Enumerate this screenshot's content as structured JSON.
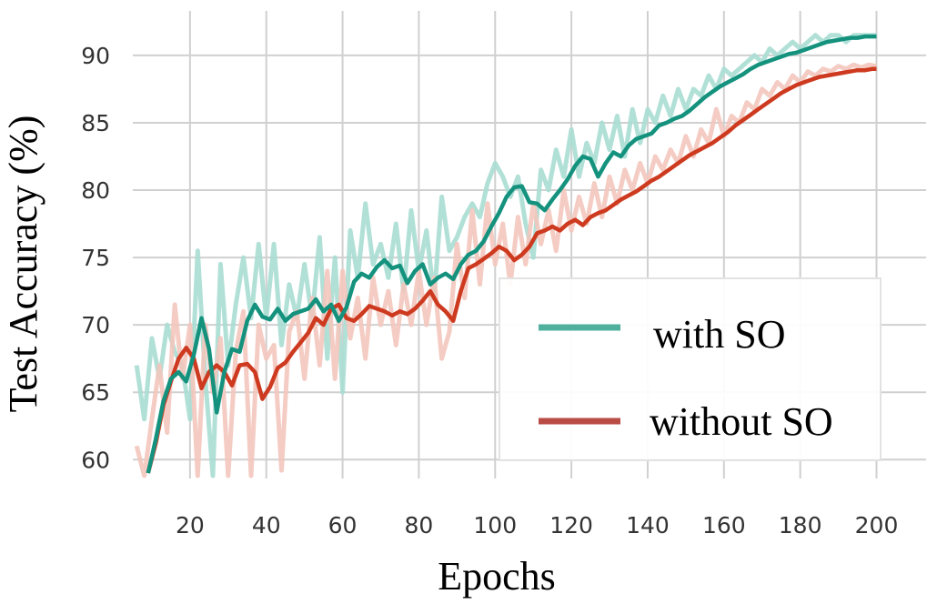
{
  "chart_data": {
    "type": "line",
    "title": "",
    "xlabel": "Epochs",
    "ylabel": "Test Accuracy (%)",
    "xlim": [
      5,
      213
    ],
    "ylim": [
      58.6,
      93.3
    ],
    "xticks": [
      20,
      40,
      60,
      80,
      100,
      120,
      140,
      160,
      180,
      200
    ],
    "yticks": [
      60,
      65,
      70,
      75,
      80,
      85,
      90
    ],
    "grid": true,
    "legend_position": "bottom-right",
    "series": [
      {
        "name": "with SO",
        "color": "#14927e",
        "raw_color": "#a9ddd3",
        "smoothed": {
          "x": [
            9,
            11,
            13,
            15,
            17,
            19,
            21,
            23,
            25,
            27,
            29,
            31,
            33,
            35,
            37,
            39,
            41,
            43,
            45,
            47,
            49,
            51,
            53,
            55,
            57,
            59,
            61,
            63,
            65,
            67,
            69,
            71,
            73,
            75,
            77,
            79,
            81,
            83,
            85,
            87,
            89,
            91,
            93,
            95,
            97,
            99,
            101,
            103,
            105,
            107,
            109,
            111,
            113,
            115,
            117,
            119,
            121,
            123,
            125,
            127,
            129,
            131,
            133,
            135,
            137,
            139,
            141,
            143,
            145,
            147,
            149,
            151,
            153,
            155,
            157,
            159,
            161,
            163,
            165,
            167,
            169,
            171,
            173,
            175,
            177,
            179,
            181,
            183,
            185,
            187,
            189,
            191,
            193,
            195,
            197,
            199,
            200
          ],
          "y": [
            59.0,
            61.5,
            64.3,
            66.0,
            66.5,
            65.8,
            67.8,
            70.5,
            68.2,
            63.5,
            66.5,
            68.2,
            68.0,
            70.3,
            71.5,
            70.6,
            70.4,
            71.2,
            70.3,
            70.8,
            71.0,
            71.2,
            71.9,
            71.0,
            71.5,
            70.3,
            71.3,
            73.2,
            73.8,
            73.5,
            74.3,
            74.8,
            74.2,
            74.4,
            73.1,
            74.0,
            74.5,
            73.0,
            73.5,
            73.8,
            73.4,
            74.5,
            75.2,
            75.5,
            76.2,
            77.3,
            78.3,
            79.5,
            80.2,
            80.3,
            79.1,
            79.0,
            78.5,
            79.3,
            80.0,
            80.8,
            81.8,
            82.5,
            82.3,
            81.0,
            82.0,
            82.8,
            82.5,
            83.3,
            83.8,
            84.0,
            84.2,
            84.8,
            85.0,
            85.3,
            85.5,
            85.9,
            86.4,
            86.9,
            87.3,
            87.7,
            88.0,
            88.3,
            88.6,
            89.0,
            89.3,
            89.5,
            89.7,
            89.9,
            90.1,
            90.2,
            90.4,
            90.6,
            90.8,
            91.0,
            91.1,
            91.2,
            91.3,
            91.3,
            91.4,
            91.4,
            91.4
          ]
        },
        "raw": {
          "x": [
            6,
            8,
            10,
            12,
            14,
            16,
            18,
            20,
            22,
            24,
            26,
            28,
            30,
            32,
            34,
            36,
            38,
            40,
            42,
            44,
            46,
            48,
            50,
            52,
            54,
            56,
            58,
            60,
            62,
            64,
            66,
            68,
            70,
            72,
            74,
            76,
            78,
            80,
            82,
            84,
            86,
            88,
            90,
            92,
            94,
            96,
            98,
            100,
            102,
            104,
            106,
            108,
            110,
            112,
            114,
            116,
            118,
            120,
            122,
            124,
            126,
            128,
            130,
            132,
            134,
            136,
            138,
            140,
            142,
            144,
            146,
            148,
            150,
            152,
            154,
            156,
            158,
            160,
            162,
            164,
            166,
            168,
            170,
            172,
            174,
            176,
            178,
            180,
            182,
            184,
            186,
            188,
            190,
            192,
            194,
            196,
            198,
            200
          ],
          "y": [
            67.0,
            63.0,
            69.0,
            66.0,
            70.0,
            68.0,
            67.0,
            63.0,
            75.5,
            66.0,
            58.8,
            74.5,
            67.0,
            71.5,
            75.0,
            70.5,
            76.0,
            70.5,
            76.0,
            68.5,
            73.0,
            70.5,
            74.5,
            70.5,
            76.5,
            67.5,
            75.0,
            65.0,
            77.0,
            73.5,
            79.0,
            74.5,
            76.0,
            73.5,
            77.5,
            72.5,
            78.5,
            74.0,
            77.0,
            72.0,
            79.5,
            75.5,
            76.5,
            78.0,
            79.0,
            78.0,
            80.5,
            82.0,
            81.0,
            79.5,
            81.0,
            77.5,
            75.0,
            81.5,
            80.0,
            83.0,
            81.0,
            84.5,
            81.0,
            83.5,
            82.0,
            85.0,
            83.0,
            85.5,
            82.5,
            86.0,
            83.5,
            86.0,
            85.0,
            87.0,
            85.5,
            87.5,
            86.0,
            87.5,
            87.0,
            88.5,
            87.5,
            89.0,
            88.5,
            89.0,
            89.5,
            90.0,
            89.5,
            90.5,
            90.0,
            90.5,
            91.0,
            90.5,
            91.0,
            91.5,
            91.0,
            91.5,
            91.5,
            91.0,
            91.5,
            91.5,
            91.5,
            91.5
          ]
        }
      },
      {
        "name": "without SO",
        "color": "#cd3a1f",
        "raw_color": "#f3c6bd",
        "smoothed": {
          "x": [
            9,
            11,
            13,
            15,
            17,
            19,
            21,
            23,
            25,
            27,
            29,
            31,
            33,
            35,
            37,
            39,
            41,
            43,
            45,
            47,
            49,
            51,
            53,
            55,
            57,
            59,
            61,
            63,
            65,
            67,
            69,
            71,
            73,
            75,
            77,
            79,
            81,
            83,
            85,
            87,
            89,
            91,
            93,
            95,
            97,
            99,
            101,
            103,
            105,
            107,
            109,
            111,
            113,
            115,
            117,
            119,
            121,
            123,
            125,
            127,
            129,
            131,
            133,
            135,
            137,
            139,
            141,
            143,
            145,
            147,
            149,
            151,
            153,
            155,
            157,
            159,
            161,
            163,
            165,
            167,
            169,
            171,
            173,
            175,
            177,
            179,
            181,
            183,
            185,
            187,
            189,
            191,
            193,
            195,
            197,
            199,
            200
          ],
          "y": [
            59.0,
            61.2,
            64.0,
            65.8,
            67.5,
            68.3,
            67.5,
            65.3,
            66.5,
            67.0,
            66.5,
            65.5,
            67.0,
            67.1,
            66.5,
            64.5,
            65.4,
            66.8,
            67.2,
            68.0,
            68.7,
            69.4,
            70.5,
            70.0,
            71.2,
            71.5,
            70.5,
            70.3,
            70.8,
            71.4,
            71.2,
            71.0,
            70.7,
            71.0,
            70.8,
            71.2,
            71.8,
            72.5,
            71.5,
            71.0,
            70.3,
            72.5,
            74.2,
            74.5,
            74.9,
            75.3,
            75.8,
            75.5,
            74.8,
            75.2,
            75.8,
            76.8,
            77.0,
            77.3,
            77.0,
            77.5,
            77.8,
            77.4,
            78.0,
            78.3,
            78.5,
            78.9,
            79.3,
            79.6,
            79.9,
            80.3,
            80.7,
            81.0,
            81.4,
            81.8,
            82.2,
            82.6,
            82.9,
            83.2,
            83.5,
            83.9,
            84.3,
            84.8,
            85.2,
            85.6,
            86.0,
            86.4,
            86.8,
            87.2,
            87.5,
            87.8,
            88.0,
            88.2,
            88.4,
            88.5,
            88.6,
            88.7,
            88.8,
            88.9,
            88.9,
            89.0,
            89.0
          ]
        },
        "raw": {
          "x": [
            6,
            8,
            10,
            12,
            14,
            16,
            18,
            20,
            22,
            24,
            26,
            28,
            30,
            32,
            34,
            36,
            38,
            40,
            42,
            44,
            46,
            48,
            50,
            52,
            54,
            56,
            58,
            60,
            62,
            64,
            66,
            68,
            70,
            72,
            74,
            76,
            78,
            80,
            82,
            84,
            86,
            88,
            90,
            92,
            94,
            96,
            98,
            100,
            102,
            104,
            106,
            108,
            110,
            112,
            114,
            116,
            118,
            120,
            122,
            124,
            126,
            128,
            130,
            132,
            134,
            136,
            138,
            140,
            142,
            144,
            146,
            148,
            150,
            152,
            154,
            156,
            158,
            160,
            162,
            164,
            166,
            168,
            170,
            172,
            174,
            176,
            178,
            180,
            182,
            184,
            186,
            188,
            190,
            192,
            194,
            196,
            198,
            200
          ],
          "y": [
            61.0,
            58.8,
            63.0,
            67.0,
            62.0,
            71.5,
            66.0,
            70.0,
            58.8,
            70.0,
            65.0,
            69.0,
            58.8,
            68.0,
            71.0,
            58.8,
            70.0,
            67.5,
            68.5,
            59.2,
            69.5,
            71.0,
            66.0,
            72.0,
            67.0,
            74.0,
            66.0,
            74.0,
            69.0,
            72.0,
            67.5,
            73.5,
            70.0,
            72.5,
            68.5,
            73.0,
            70.0,
            74.0,
            70.0,
            73.5,
            67.5,
            69.5,
            76.0,
            72.0,
            78.5,
            73.0,
            79.0,
            74.5,
            77.5,
            73.0,
            78.0,
            74.5,
            79.0,
            76.0,
            78.5,
            75.5,
            80.0,
            77.0,
            79.5,
            77.5,
            80.5,
            78.0,
            81.0,
            79.0,
            81.5,
            80.0,
            82.0,
            80.5,
            82.5,
            81.5,
            83.0,
            82.0,
            84.0,
            82.5,
            84.5,
            83.5,
            86.0,
            84.0,
            85.5,
            85.0,
            86.5,
            86.0,
            87.5,
            87.0,
            88.0,
            87.5,
            88.5,
            88.0,
            88.8,
            88.5,
            89.0,
            88.8,
            89.2,
            89.0,
            89.3,
            89.1,
            89.3,
            89.2
          ]
        }
      }
    ]
  }
}
